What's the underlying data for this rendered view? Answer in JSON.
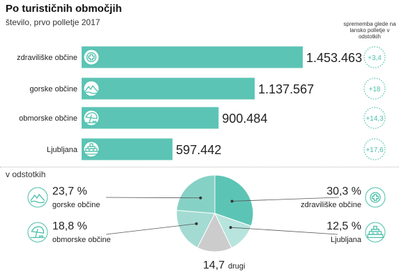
{
  "title": "Po turističnih območjih",
  "subtitle": "število, prvo polletje 2017",
  "change_header": "sprememba glede na lansko polletje v odstotkih",
  "pct_header": "v odstotkih",
  "colors": {
    "bar": "#5cc4b5",
    "icon": "#4bbfaa",
    "pie_zdraviliske": "#5cc4b5",
    "pie_ljubljana": "#b7e4dd",
    "pie_drugi": "#cccccc",
    "pie_obmorske": "#a3dbd2",
    "pie_gorske": "#86d1c5"
  },
  "chart_data": [
    {
      "type": "bar",
      "orientation": "horizontal",
      "title": "Po turističnih območjih",
      "subtitle": "število, prvo polletje 2017",
      "categories": [
        "zdraviliške občine",
        "gorske občine",
        "obmorske občine",
        "Ljubljana"
      ],
      "values": [
        1453463,
        1137567,
        900484,
        597442
      ],
      "value_labels": [
        "1.453.463",
        "1.137.567",
        "900.484",
        "597.442"
      ],
      "icons": [
        "medical-cross-icon",
        "mountain-icon",
        "beach-umbrella-icon",
        "ljubljana-castle-icon"
      ],
      "change_header": "sprememba glede na lansko polletje v odstotkih",
      "change_values": [
        3.4,
        18,
        14.3,
        17.6
      ],
      "change_labels": [
        "+3,4",
        "+18",
        "+14,3",
        "+17,6"
      ],
      "xlim": [
        0,
        1500000
      ],
      "grid": false
    },
    {
      "type": "pie",
      "title": "v odstotkih",
      "slices": [
        {
          "label": "zdraviliške občine",
          "value": 30.3,
          "value_label": "30,3 %",
          "icon": "medical-cross-icon"
        },
        {
          "label": "Ljubljana",
          "value": 12.5,
          "value_label": "12,5 %",
          "icon": "ljubljana-castle-icon"
        },
        {
          "label": "drugi",
          "value": 14.7,
          "value_label": "14,7"
        },
        {
          "label": "obmorske občine",
          "value": 18.8,
          "value_label": "18,8 %",
          "icon": "beach-umbrella-icon"
        },
        {
          "label": "gorske občine",
          "value": 23.7,
          "value_label": "23,7 %",
          "icon": "mountain-icon"
        }
      ]
    }
  ]
}
